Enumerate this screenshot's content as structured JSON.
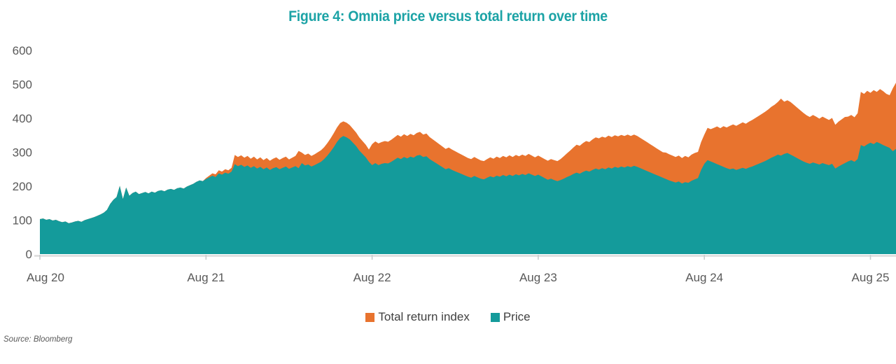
{
  "source_note": "Source: Bloomberg",
  "colors": {
    "title": "#1CA3A6",
    "orange": "#E8732E",
    "teal": "#149B9B",
    "axis_text": "#595959",
    "axis_line": "#DCDCDC",
    "tick": "#C6CACC"
  },
  "chart_data": {
    "type": "area",
    "title": "Figure 4: Omnia price versus total return over time",
    "xlabel": "",
    "ylabel": "",
    "ylim": [
      0,
      600
    ],
    "y_ticks": [
      0,
      100,
      200,
      300,
      400,
      500,
      600
    ],
    "x_tick_labels": [
      "Aug 20",
      "Aug 21",
      "Aug 22",
      "Aug 23",
      "Aug 24",
      "Aug 25"
    ],
    "x_tick_step_points": 52,
    "x_note": "weekly samples, Aug 2020 to Oct 2025; indexed to 100 at start",
    "grid": false,
    "legend_position": "bottom",
    "series": [
      {
        "name": "Total return index",
        "color": "#E8732E",
        "values": [
          103,
          105,
          101,
          103,
          99,
          101,
          97,
          94,
          96,
          91,
          93,
          96,
          98,
          95,
          100,
          103,
          106,
          109,
          113,
          117,
          122,
          130,
          148,
          160,
          168,
          201,
          162,
          196,
          172,
          180,
          184,
          177,
          180,
          183,
          179,
          184,
          181,
          186,
          188,
          185,
          190,
          192,
          189,
          194,
          196,
          193,
          199,
          203,
          207,
          213,
          217,
          215,
          224,
          231,
          238,
          235,
          247,
          243,
          250,
          247,
          254,
          292,
          286,
          291,
          284,
          289,
          281,
          287,
          279,
          285,
          277,
          283,
          275,
          281,
          285,
          278,
          283,
          287,
          279,
          284,
          289,
          304,
          299,
          292,
          296,
          289,
          294,
          300,
          306,
          315,
          327,
          341,
          356,
          373,
          386,
          391,
          387,
          380,
          369,
          358,
          344,
          333,
          322,
          308,
          324,
          332,
          326,
          330,
          333,
          331,
          337,
          344,
          351,
          346,
          353,
          348,
          354,
          350,
          357,
          360,
          352,
          355,
          345,
          338,
          331,
          324,
          317,
          310,
          314,
          308,
          303,
          298,
          293,
          288,
          283,
          280,
          286,
          281,
          276,
          274,
          280,
          285,
          281,
          287,
          283,
          289,
          285,
          291,
          286,
          292,
          288,
          293,
          289,
          295,
          290,
          285,
          290,
          285,
          280,
          275,
          280,
          277,
          274,
          280,
          288,
          297,
          305,
          314,
          322,
          319,
          327,
          333,
          330,
          338,
          344,
          341,
          346,
          343,
          349,
          345,
          350,
          347,
          351,
          348,
          352,
          348,
          352,
          348,
          342,
          336,
          330,
          324,
          318,
          312,
          306,
          300,
          299,
          294,
          290,
          286,
          290,
          283,
          289,
          285,
          293,
          298,
          301,
          330,
          352,
          372,
          368,
          372,
          376,
          371,
          377,
          373,
          378,
          382,
          378,
          383,
          388,
          384,
          390,
          395,
          401,
          407,
          413,
          419,
          426,
          434,
          440,
          448,
          458,
          449,
          453,
          448,
          440,
          432,
          424,
          416,
          409,
          404,
          410,
          405,
          399,
          405,
          400,
          395,
          401,
          381,
          390,
          397,
          404,
          405,
          410,
          403,
          415,
          478,
          472,
          481,
          475,
          483,
          478,
          486,
          480,
          472,
          468,
          488,
          505
        ]
      },
      {
        "name": "Price",
        "color": "#149B9B",
        "values": [
          103,
          105,
          101,
          103,
          99,
          101,
          97,
          94,
          96,
          91,
          93,
          96,
          98,
          95,
          100,
          103,
          106,
          109,
          113,
          117,
          122,
          130,
          148,
          160,
          168,
          201,
          162,
          196,
          172,
          180,
          184,
          177,
          180,
          183,
          179,
          184,
          181,
          186,
          188,
          185,
          190,
          192,
          189,
          194,
          196,
          193,
          199,
          203,
          207,
          213,
          217,
          215,
          221,
          226,
          231,
          227,
          238,
          234,
          240,
          237,
          243,
          265,
          259,
          263,
          257,
          261,
          254,
          259,
          252,
          257,
          250,
          255,
          248,
          253,
          256,
          250,
          254,
          258,
          251,
          255,
          259,
          253,
          268,
          261,
          264,
          258,
          262,
          267,
          272,
          280,
          290,
          302,
          315,
          330,
          342,
          348,
          344,
          338,
          328,
          318,
          305,
          295,
          285,
          272,
          262,
          268,
          262,
          266,
          268,
          267,
          272,
          278,
          284,
          280,
          286,
          282,
          287,
          284,
          290,
          292,
          286,
          288,
          280,
          274,
          268,
          262,
          256,
          250,
          253,
          248,
          244,
          240,
          236,
          232,
          228,
          225,
          230,
          226,
          222,
          220,
          225,
          229,
          226,
          231,
          228,
          233,
          229,
          234,
          230,
          235,
          232,
          236,
          233,
          238,
          234,
          230,
          234,
          229,
          224,
          219,
          222,
          218,
          215,
          218,
          222,
          227,
          231,
          236,
          240,
          237,
          242,
          246,
          243,
          248,
          252,
          249,
          253,
          250,
          255,
          252,
          257,
          254,
          258,
          255,
          259,
          256,
          260,
          257,
          253,
          249,
          245,
          241,
          237,
          233,
          229,
          225,
          221,
          217,
          214,
          211,
          214,
          208,
          212,
          210,
          216,
          220,
          224,
          248,
          266,
          277,
          273,
          269,
          265,
          261,
          257,
          253,
          250,
          252,
          248,
          251,
          254,
          251,
          255,
          258,
          262,
          266,
          270,
          274,
          279,
          284,
          288,
          293,
          290,
          295,
          298,
          293,
          288,
          283,
          278,
          273,
          269,
          266,
          270,
          267,
          264,
          268,
          265,
          262,
          266,
          252,
          258,
          263,
          268,
          273,
          277,
          272,
          280,
          321,
          317,
          323,
          328,
          324,
          330,
          326,
          321,
          317,
          313,
          303,
          310
        ]
      }
    ]
  }
}
